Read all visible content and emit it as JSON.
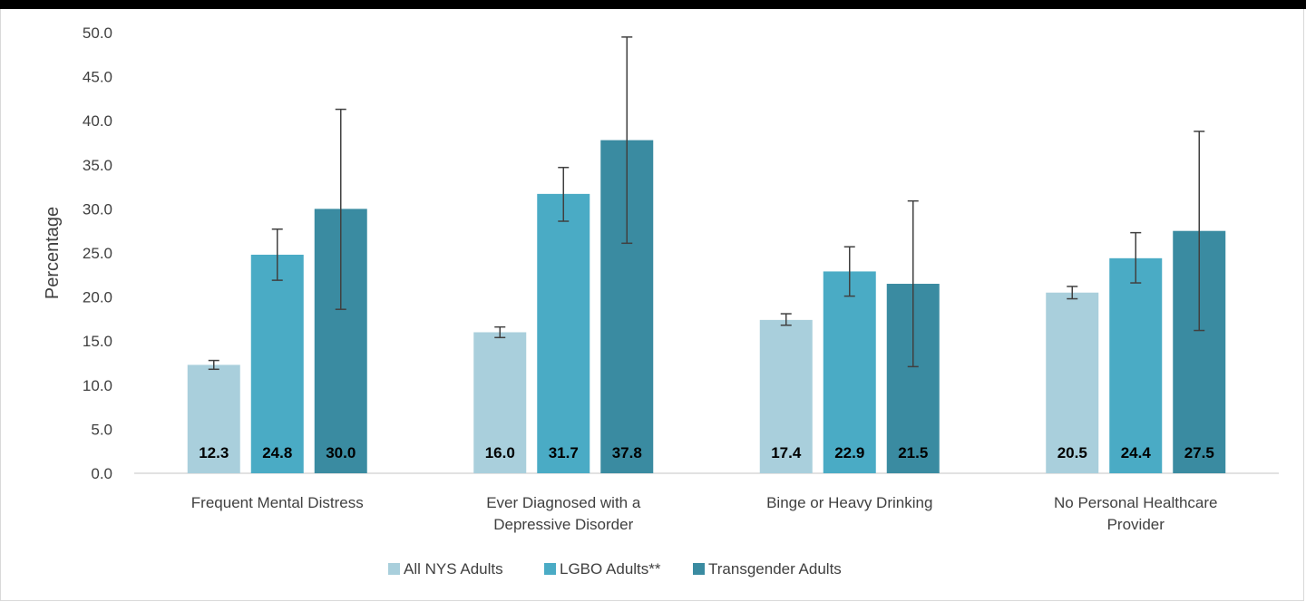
{
  "chart_data": {
    "type": "bar",
    "ylabel": "Percentage",
    "ylim": [
      0,
      50
    ],
    "yticks": [
      "0.0",
      "5.0",
      "10.0",
      "15.0",
      "20.0",
      "25.0",
      "30.0",
      "35.0",
      "40.0",
      "45.0",
      "50.0"
    ],
    "categories": [
      [
        "Frequent Mental Distress"
      ],
      [
        "Ever Diagnosed with a",
        "Depressive Disorder"
      ],
      [
        "Binge or Heavy Drinking"
      ],
      [
        "No Personal Healthcare",
        "Provider"
      ]
    ],
    "series": [
      {
        "name": "All NYS Adults",
        "color": "#a9cfdc",
        "values": [
          12.3,
          16.0,
          17.4,
          20.5
        ],
        "labels": [
          "12.3",
          "16.0",
          "17.4",
          "20.5"
        ],
        "error_low": [
          11.8,
          15.4,
          16.8,
          19.8
        ],
        "error_high": [
          12.8,
          16.6,
          18.1,
          21.2
        ]
      },
      {
        "name": "LGBO Adults**",
        "color": "#4aabc5",
        "values": [
          24.8,
          31.7,
          22.9,
          24.4
        ],
        "labels": [
          "24.8",
          "31.7",
          "22.9",
          "24.4"
        ],
        "error_low": [
          21.9,
          28.6,
          20.1,
          21.6
        ],
        "error_high": [
          27.7,
          34.7,
          25.7,
          27.3
        ]
      },
      {
        "name": "Transgender Adults",
        "color": "#3a8ba1",
        "values": [
          30.0,
          37.8,
          21.5,
          27.5
        ],
        "labels": [
          "30.0",
          "37.8",
          "21.5",
          "27.5"
        ],
        "error_low": [
          18.6,
          26.1,
          12.1,
          16.2
        ],
        "error_high": [
          41.3,
          49.5,
          30.9,
          38.8
        ]
      }
    ],
    "legend_position": "bottom",
    "grid": false
  }
}
